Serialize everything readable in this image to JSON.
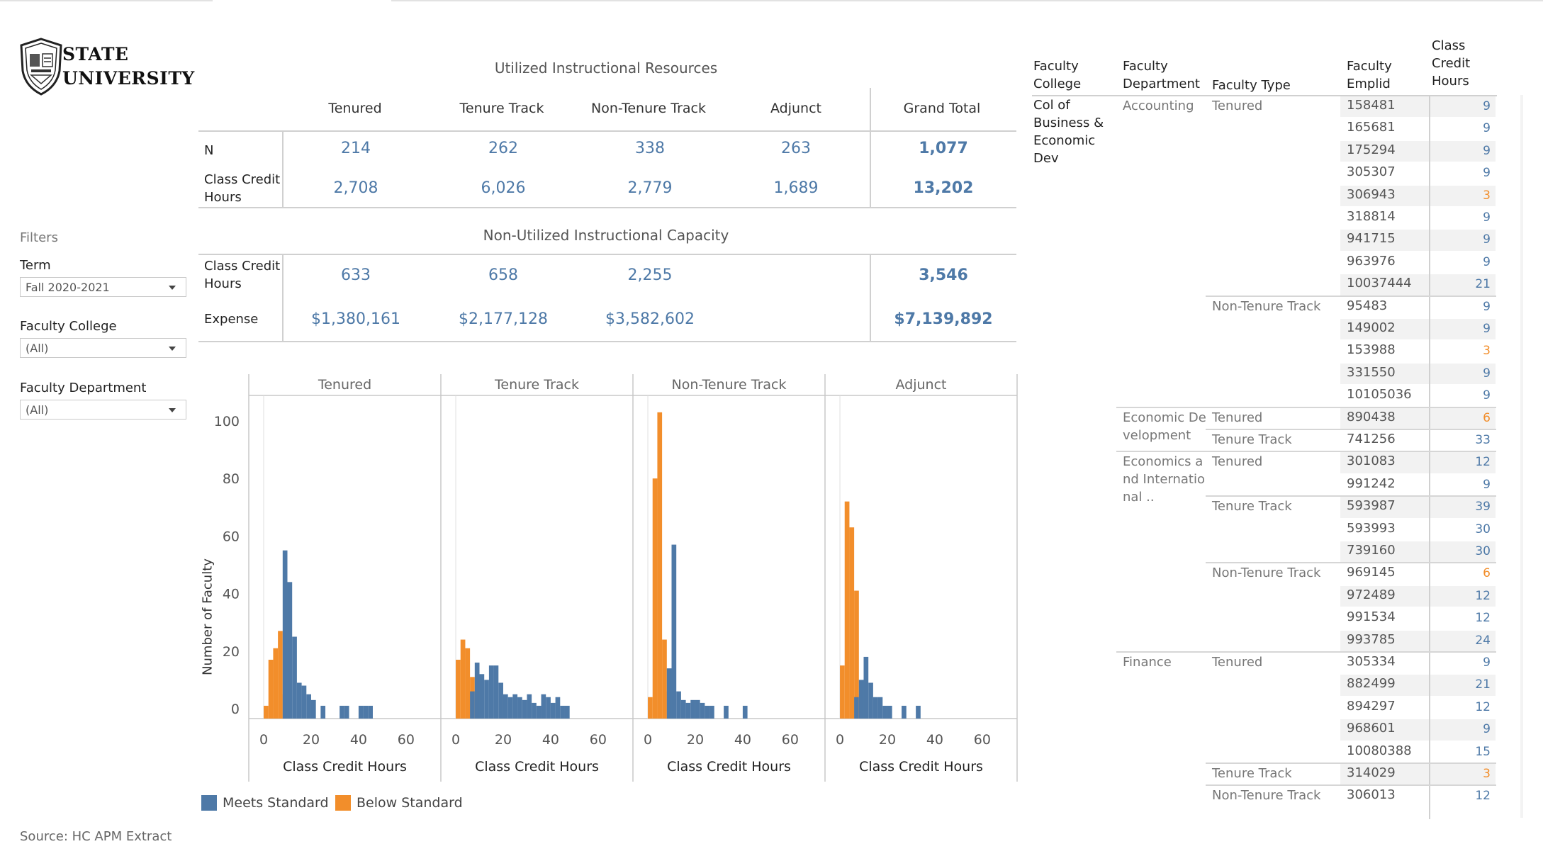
{
  "logo": {
    "line1": "STATE",
    "line2": "UNIVERSITY",
    "icon": "shield-icon"
  },
  "filters": {
    "title": "Filters",
    "term": {
      "label": "Term",
      "value": "Fall 2020-2021"
    },
    "college": {
      "label": "Faculty College",
      "value": "(All)"
    },
    "department": {
      "label": "Faculty Department",
      "value": "(All)"
    }
  },
  "source": "Source: HC APM Extract",
  "utilized": {
    "title": "Utilized Instructional Resources",
    "columns": [
      "Tenured",
      "Tenure Track",
      "Non-Tenure Track",
      "Adjunct",
      "Grand Total"
    ],
    "rows": [
      {
        "label": "N",
        "values": [
          "214",
          "262",
          "338",
          "263",
          "1,077"
        ]
      },
      {
        "label": "Class Credit Hours",
        "values": [
          "2,708",
          "6,026",
          "2,779",
          "1,689",
          "13,202"
        ]
      }
    ]
  },
  "nonutilized": {
    "title": "Non-Utilized Instructional Capacity",
    "rows": [
      {
        "label": "Class Credit Hours",
        "values": [
          "633",
          "658",
          "2,255",
          "",
          "3,546"
        ]
      },
      {
        "label": "Expense",
        "values": [
          "$1,380,161",
          "$2,177,128",
          "$3,582,602",
          "",
          "$7,139,892"
        ]
      }
    ]
  },
  "colors": {
    "meets": "#4e79a7",
    "below": "#f28e2b",
    "number": "#4e79a7",
    "orange_text": "#f28e2b"
  },
  "chart_data": {
    "type": "bar",
    "ylabel": "Number of Faculty",
    "xlabel": "Class Credit Hours",
    "ylim": [
      0,
      105
    ],
    "xlim": [
      -3,
      72
    ],
    "yticks": [
      0,
      20,
      40,
      60,
      80,
      100
    ],
    "xticks": [
      0,
      20,
      40,
      60
    ],
    "legend": {
      "position": "bottom-left",
      "meets": "Meets Standard",
      "below": "Below Standard"
    },
    "bin_start": 0,
    "bin_width": 2,
    "panels": [
      {
        "name": "Tenured",
        "below": [
          1,
          17,
          21,
          27,
          5,
          0,
          0,
          0,
          0,
          0,
          0,
          0,
          0,
          0,
          0,
          0,
          0,
          0,
          0,
          0,
          0,
          0,
          0,
          0
        ],
        "meets": [
          0,
          0,
          0,
          0,
          55,
          44,
          25,
          9,
          8,
          5,
          3,
          0,
          1,
          0,
          0,
          0,
          1,
          1,
          0,
          0,
          1,
          1,
          1,
          0
        ]
      },
      {
        "name": "Tenure Track",
        "below": [
          17,
          24,
          21,
          11,
          0,
          0,
          0,
          0,
          0,
          0,
          0,
          0,
          0,
          0,
          0,
          0,
          0,
          0,
          0,
          0,
          0,
          0,
          0,
          0
        ],
        "meets": [
          0,
          0,
          0,
          6,
          16,
          12,
          10,
          15,
          15,
          9,
          5,
          4,
          5,
          4,
          3,
          5,
          2,
          1,
          5,
          4,
          2,
          4,
          1,
          1
        ]
      },
      {
        "name": "Non-Tenure Track",
        "below": [
          4,
          80,
          103,
          24,
          6,
          0,
          0,
          0,
          0,
          0,
          0,
          0,
          0,
          0,
          0,
          0,
          0,
          0,
          0,
          0,
          0,
          0,
          0,
          0
        ],
        "meets": [
          0,
          0,
          0,
          0,
          14,
          57,
          6,
          3,
          2,
          3,
          3,
          2,
          1,
          1,
          0,
          0,
          1,
          0,
          0,
          0,
          1,
          0,
          0,
          0
        ]
      },
      {
        "name": "Adjunct",
        "below": [
          15,
          72,
          63,
          41,
          5,
          0,
          0,
          0,
          0,
          0,
          0,
          0,
          0,
          0,
          0,
          0,
          0,
          0,
          0,
          0,
          0,
          0,
          0,
          0
        ],
        "meets": [
          0,
          0,
          0,
          4,
          10,
          18,
          9,
          4,
          4,
          1,
          1,
          0,
          0,
          1,
          0,
          0,
          1,
          0,
          0,
          0,
          0,
          0,
          0,
          0
        ]
      }
    ]
  },
  "detail_table": {
    "headers": {
      "college": [
        "Faculty",
        "College"
      ],
      "department": [
        "Faculty",
        "Department"
      ],
      "type": "Faculty Type",
      "emplid": [
        "Faculty",
        "Emplid"
      ],
      "credit": [
        "Class",
        "Credit",
        "Hours"
      ]
    },
    "college": [
      "Col of",
      "Business &",
      "Economic",
      "Dev"
    ],
    "departments": [
      {
        "lines": [
          "Accounting"
        ],
        "start": 0
      },
      {
        "lines": [
          "Economic De",
          "velopment"
        ],
        "start": 14
      },
      {
        "lines": [
          "Economics a",
          "nd Internatio",
          "nal .."
        ],
        "start": 16
      },
      {
        "lines": [
          "Finance"
        ],
        "start": 25
      }
    ],
    "types": [
      {
        "label": "Tenured",
        "start": 0
      },
      {
        "label": "Non-Tenure Track",
        "start": 9
      },
      {
        "label": "Tenured",
        "start": 14
      },
      {
        "label": "Tenure Track",
        "start": 15
      },
      {
        "label": "Tenured",
        "start": 16
      },
      {
        "label": "Tenure Track",
        "start": 18
      },
      {
        "label": "Non-Tenure Track",
        "start": 21
      },
      {
        "label": "Tenured",
        "start": 25
      },
      {
        "label": "Tenure Track",
        "start": 30
      },
      {
        "label": "Non-Tenure Track",
        "start": 31
      }
    ],
    "rows": [
      {
        "emplid": "158481",
        "hours": "9",
        "below": false
      },
      {
        "emplid": "165681",
        "hours": "9",
        "below": false
      },
      {
        "emplid": "175294",
        "hours": "9",
        "below": false
      },
      {
        "emplid": "305307",
        "hours": "9",
        "below": false
      },
      {
        "emplid": "306943",
        "hours": "3",
        "below": true
      },
      {
        "emplid": "318814",
        "hours": "9",
        "below": false
      },
      {
        "emplid": "941715",
        "hours": "9",
        "below": false
      },
      {
        "emplid": "963976",
        "hours": "9",
        "below": false
      },
      {
        "emplid": "10037444",
        "hours": "21",
        "below": false
      },
      {
        "emplid": "95483",
        "hours": "9",
        "below": false
      },
      {
        "emplid": "149002",
        "hours": "9",
        "below": false
      },
      {
        "emplid": "153988",
        "hours": "3",
        "below": true
      },
      {
        "emplid": "331550",
        "hours": "9",
        "below": false
      },
      {
        "emplid": "10105036",
        "hours": "9",
        "below": false
      },
      {
        "emplid": "890438",
        "hours": "6",
        "below": true
      },
      {
        "emplid": "741256",
        "hours": "33",
        "below": false
      },
      {
        "emplid": "301083",
        "hours": "12",
        "below": false
      },
      {
        "emplid": "991242",
        "hours": "9",
        "below": false
      },
      {
        "emplid": "593987",
        "hours": "39",
        "below": false
      },
      {
        "emplid": "593993",
        "hours": "30",
        "below": false
      },
      {
        "emplid": "739160",
        "hours": "30",
        "below": false
      },
      {
        "emplid": "969145",
        "hours": "6",
        "below": true
      },
      {
        "emplid": "972489",
        "hours": "12",
        "below": false
      },
      {
        "emplid": "991534",
        "hours": "12",
        "below": false
      },
      {
        "emplid": "993785",
        "hours": "24",
        "below": false
      },
      {
        "emplid": "305334",
        "hours": "9",
        "below": false
      },
      {
        "emplid": "882499",
        "hours": "21",
        "below": false
      },
      {
        "emplid": "894297",
        "hours": "12",
        "below": false
      },
      {
        "emplid": "968601",
        "hours": "9",
        "below": false
      },
      {
        "emplid": "10080388",
        "hours": "15",
        "below": false
      },
      {
        "emplid": "314029",
        "hours": "3",
        "below": true
      },
      {
        "emplid": "306013",
        "hours": "12",
        "below": false
      }
    ]
  }
}
